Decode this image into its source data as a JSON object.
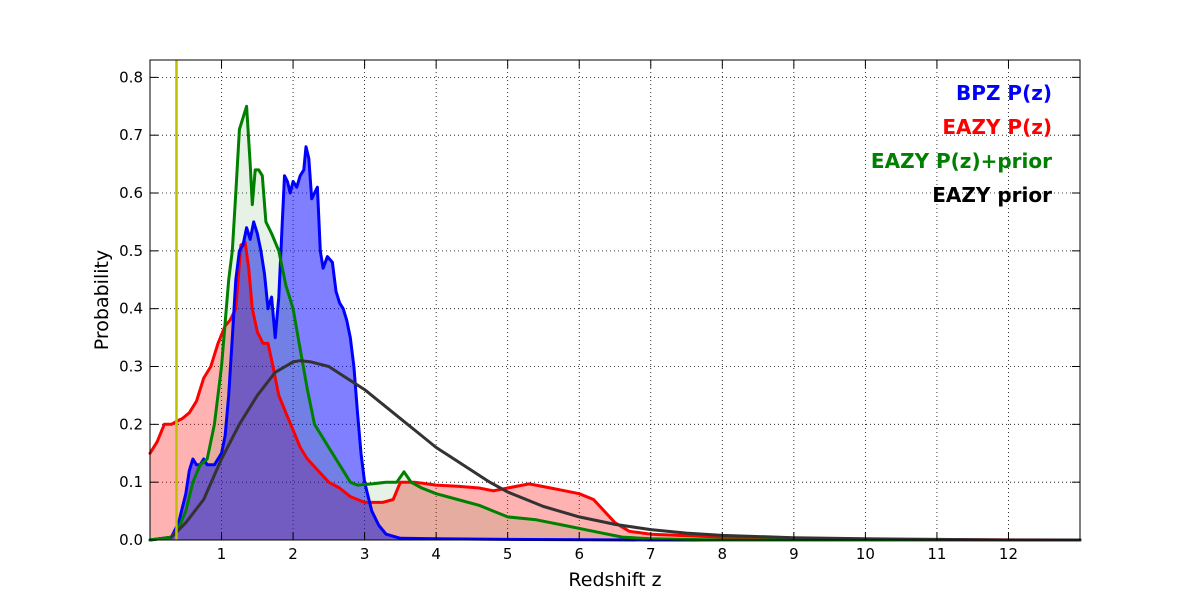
{
  "chart_data": {
    "type": "area",
    "title": "",
    "xlabel": "Redshift z",
    "ylabel": "Probability",
    "xlim": [
      0,
      13
    ],
    "ylim": [
      0,
      0.83
    ],
    "grid": true,
    "legend_placement": "top-right",
    "x_ticks": [
      1,
      2,
      3,
      4,
      5,
      6,
      7,
      8,
      9,
      10,
      11,
      12
    ],
    "y_ticks": [
      0.0,
      0.1,
      0.2,
      0.3,
      0.4,
      0.5,
      0.6,
      0.7,
      0.8
    ],
    "x_tick_labels": [
      "1",
      "2",
      "3",
      "4",
      "5",
      "6",
      "7",
      "8",
      "9",
      "10",
      "11",
      "12"
    ],
    "y_tick_labels": [
      "0.0",
      "0.1",
      "0.2",
      "0.3",
      "0.4",
      "0.5",
      "0.6",
      "0.7",
      "0.8"
    ],
    "reference_line": {
      "x": 0.37,
      "color": "#bfbf00"
    },
    "series": [
      {
        "name": "EAZY P(z)",
        "color": "#ff0000",
        "fill": "#ff0000",
        "fill_opacity": 0.3,
        "points": [
          [
            0,
            0.15
          ],
          [
            0.1,
            0.17
          ],
          [
            0.2,
            0.2
          ],
          [
            0.3,
            0.2
          ],
          [
            0.37,
            0.205
          ],
          [
            0.45,
            0.21
          ],
          [
            0.55,
            0.22
          ],
          [
            0.65,
            0.24
          ],
          [
            0.75,
            0.28
          ],
          [
            0.85,
            0.3
          ],
          [
            0.95,
            0.34
          ],
          [
            1.05,
            0.37
          ],
          [
            1.12,
            0.38
          ],
          [
            1.2,
            0.4
          ],
          [
            1.27,
            0.51
          ],
          [
            1.33,
            0.515
          ],
          [
            1.38,
            0.47
          ],
          [
            1.43,
            0.4
          ],
          [
            1.5,
            0.36
          ],
          [
            1.58,
            0.34
          ],
          [
            1.65,
            0.34
          ],
          [
            1.72,
            0.3
          ],
          [
            1.8,
            0.25
          ],
          [
            1.9,
            0.22
          ],
          [
            2.0,
            0.19
          ],
          [
            2.1,
            0.16
          ],
          [
            2.2,
            0.14
          ],
          [
            2.35,
            0.12
          ],
          [
            2.5,
            0.1
          ],
          [
            2.65,
            0.09
          ],
          [
            2.8,
            0.075
          ],
          [
            3.0,
            0.065
          ],
          [
            3.25,
            0.065
          ],
          [
            3.4,
            0.07
          ],
          [
            3.5,
            0.1
          ],
          [
            3.7,
            0.1
          ],
          [
            4.0,
            0.095
          ],
          [
            4.3,
            0.093
          ],
          [
            4.6,
            0.09
          ],
          [
            4.8,
            0.085
          ],
          [
            5.0,
            0.09
          ],
          [
            5.3,
            0.097
          ],
          [
            5.6,
            0.09
          ],
          [
            5.8,
            0.085
          ],
          [
            6.0,
            0.08
          ],
          [
            6.2,
            0.07
          ],
          [
            6.35,
            0.05
          ],
          [
            6.5,
            0.03
          ],
          [
            6.7,
            0.015
          ],
          [
            7.0,
            0.01
          ],
          [
            8.0,
            0.005
          ],
          [
            9.0,
            0.002
          ],
          [
            10.0,
            0.001
          ],
          [
            13.0,
            0.0
          ]
        ]
      },
      {
        "name": "BPZ P(z)",
        "color": "#0000ff",
        "fill": "#0000ff",
        "fill_opacity": 0.5,
        "points": [
          [
            0,
            0.0
          ],
          [
            0.3,
            0.005
          ],
          [
            0.4,
            0.03
          ],
          [
            0.5,
            0.08
          ],
          [
            0.55,
            0.12
          ],
          [
            0.6,
            0.14
          ],
          [
            0.65,
            0.13
          ],
          [
            0.7,
            0.13
          ],
          [
            0.75,
            0.14
          ],
          [
            0.8,
            0.13
          ],
          [
            0.9,
            0.13
          ],
          [
            1.0,
            0.15
          ],
          [
            1.05,
            0.18
          ],
          [
            1.1,
            0.25
          ],
          [
            1.15,
            0.35
          ],
          [
            1.2,
            0.45
          ],
          [
            1.25,
            0.5
          ],
          [
            1.3,
            0.51
          ],
          [
            1.35,
            0.54
          ],
          [
            1.4,
            0.52
          ],
          [
            1.45,
            0.55
          ],
          [
            1.5,
            0.53
          ],
          [
            1.55,
            0.5
          ],
          [
            1.6,
            0.46
          ],
          [
            1.65,
            0.4
          ],
          [
            1.7,
            0.42
          ],
          [
            1.75,
            0.35
          ],
          [
            1.8,
            0.42
          ],
          [
            1.85,
            0.55
          ],
          [
            1.88,
            0.63
          ],
          [
            1.92,
            0.62
          ],
          [
            1.96,
            0.6
          ],
          [
            2.0,
            0.62
          ],
          [
            2.05,
            0.61
          ],
          [
            2.1,
            0.63
          ],
          [
            2.15,
            0.64
          ],
          [
            2.18,
            0.68
          ],
          [
            2.22,
            0.66
          ],
          [
            2.26,
            0.59
          ],
          [
            2.3,
            0.6
          ],
          [
            2.34,
            0.61
          ],
          [
            2.38,
            0.5
          ],
          [
            2.42,
            0.47
          ],
          [
            2.48,
            0.49
          ],
          [
            2.55,
            0.48
          ],
          [
            2.6,
            0.43
          ],
          [
            2.65,
            0.41
          ],
          [
            2.7,
            0.4
          ],
          [
            2.75,
            0.38
          ],
          [
            2.8,
            0.35
          ],
          [
            2.85,
            0.3
          ],
          [
            2.9,
            0.22
          ],
          [
            2.95,
            0.15
          ],
          [
            3.0,
            0.1
          ],
          [
            3.1,
            0.05
          ],
          [
            3.2,
            0.025
          ],
          [
            3.3,
            0.01
          ],
          [
            3.5,
            0.003
          ],
          [
            4.0,
            0.002
          ],
          [
            5.0,
            0.001
          ],
          [
            7.0,
            0.0
          ],
          [
            13.0,
            0.0
          ]
        ]
      },
      {
        "name": "EAZY P(z)+prior",
        "color": "#008000",
        "fill": "#008000",
        "fill_opacity": 0.1,
        "points": [
          [
            0,
            0.0
          ],
          [
            0.3,
            0.005
          ],
          [
            0.4,
            0.02
          ],
          [
            0.5,
            0.05
          ],
          [
            0.6,
            0.1
          ],
          [
            0.7,
            0.13
          ],
          [
            0.8,
            0.14
          ],
          [
            0.9,
            0.2
          ],
          [
            1.0,
            0.3
          ],
          [
            1.1,
            0.45
          ],
          [
            1.15,
            0.5
          ],
          [
            1.2,
            0.6
          ],
          [
            1.25,
            0.71
          ],
          [
            1.3,
            0.73
          ],
          [
            1.35,
            0.75
          ],
          [
            1.4,
            0.65
          ],
          [
            1.43,
            0.58
          ],
          [
            1.47,
            0.64
          ],
          [
            1.52,
            0.64
          ],
          [
            1.57,
            0.63
          ],
          [
            1.62,
            0.55
          ],
          [
            1.7,
            0.53
          ],
          [
            1.8,
            0.5
          ],
          [
            1.9,
            0.44
          ],
          [
            2.0,
            0.4
          ],
          [
            2.1,
            0.33
          ],
          [
            2.2,
            0.26
          ],
          [
            2.3,
            0.2
          ],
          [
            2.4,
            0.18
          ],
          [
            2.55,
            0.15
          ],
          [
            2.7,
            0.12
          ],
          [
            2.8,
            0.1
          ],
          [
            2.9,
            0.095
          ],
          [
            3.1,
            0.097
          ],
          [
            3.3,
            0.1
          ],
          [
            3.45,
            0.1
          ],
          [
            3.55,
            0.118
          ],
          [
            3.65,
            0.1
          ],
          [
            3.8,
            0.09
          ],
          [
            4.0,
            0.08
          ],
          [
            4.3,
            0.07
          ],
          [
            4.6,
            0.06
          ],
          [
            4.8,
            0.05
          ],
          [
            5.0,
            0.04
          ],
          [
            5.4,
            0.035
          ],
          [
            5.8,
            0.025
          ],
          [
            6.2,
            0.015
          ],
          [
            6.6,
            0.005
          ],
          [
            7.0,
            0.002
          ],
          [
            8.0,
            0.0
          ],
          [
            13.0,
            0.0
          ]
        ]
      },
      {
        "name": "EAZY prior",
        "color": "#333333",
        "fill": "#333333",
        "fill_opacity": 0.0,
        "points": [
          [
            0.3,
            0.005
          ],
          [
            0.5,
            0.03
          ],
          [
            0.75,
            0.07
          ],
          [
            1.0,
            0.14
          ],
          [
            1.25,
            0.2
          ],
          [
            1.5,
            0.25
          ],
          [
            1.75,
            0.29
          ],
          [
            2.0,
            0.308
          ],
          [
            2.1,
            0.31
          ],
          [
            2.25,
            0.308
          ],
          [
            2.5,
            0.3
          ],
          [
            2.75,
            0.28
          ],
          [
            3.0,
            0.26
          ],
          [
            3.25,
            0.235
          ],
          [
            3.5,
            0.21
          ],
          [
            3.75,
            0.185
          ],
          [
            4.0,
            0.16
          ],
          [
            4.25,
            0.14
          ],
          [
            4.5,
            0.12
          ],
          [
            4.75,
            0.1
          ],
          [
            5.0,
            0.083
          ],
          [
            5.5,
            0.058
          ],
          [
            6.0,
            0.04
          ],
          [
            6.5,
            0.027
          ],
          [
            7.0,
            0.018
          ],
          [
            7.5,
            0.012
          ],
          [
            8.0,
            0.008
          ],
          [
            9.0,
            0.004
          ],
          [
            10.0,
            0.002
          ],
          [
            11.0,
            0.001
          ],
          [
            12.0,
            0.0
          ],
          [
            13.0,
            0.0
          ]
        ]
      }
    ],
    "overlap_fill": {
      "color": "#800080",
      "opacity": 0.5
    },
    "legend": [
      {
        "label": "BPZ P(z)",
        "color": "#0000ff"
      },
      {
        "label": "EAZY P(z)",
        "color": "#ff0000"
      },
      {
        "label": "EAZY P(z)+prior",
        "color": "#008000"
      },
      {
        "label": "EAZY prior",
        "color": "#000000"
      }
    ]
  }
}
